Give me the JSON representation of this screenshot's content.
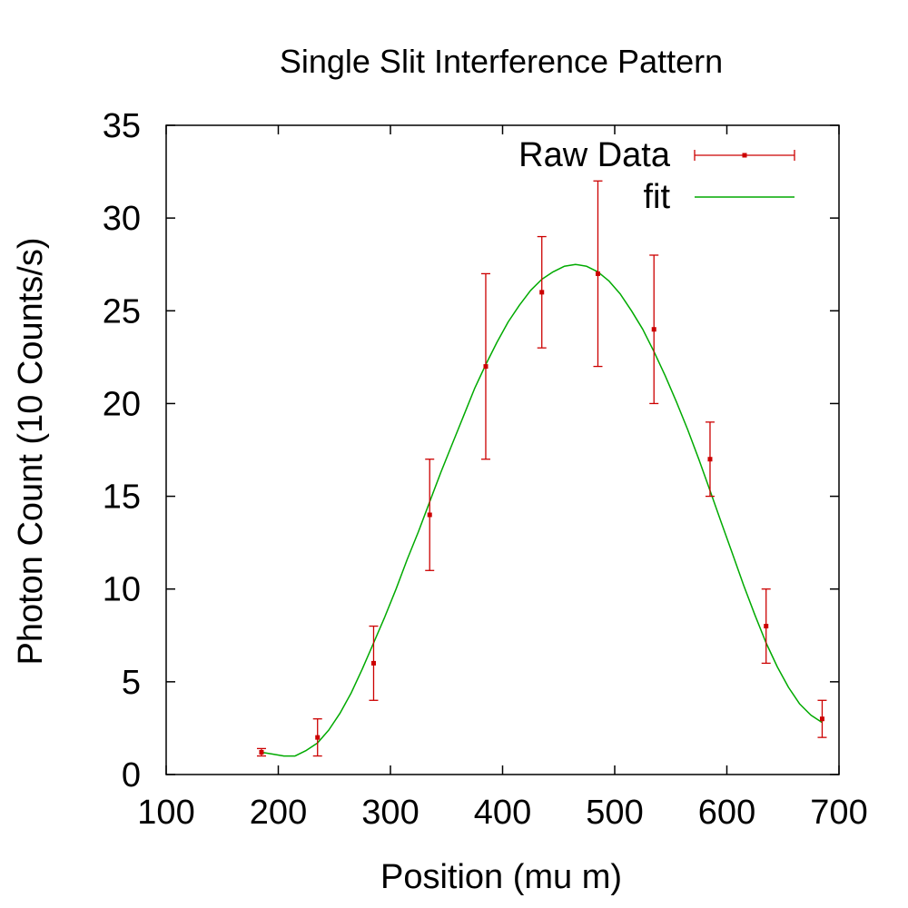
{
  "chart_data": {
    "type": "scatter",
    "title": "Single Slit Interference Pattern",
    "xlabel": "Position (mu m)",
    "ylabel": "Photon Count (10 Counts/s)",
    "xlim": [
      100,
      700
    ],
    "ylim": [
      0,
      35
    ],
    "xticks": [
      100,
      200,
      300,
      400,
      500,
      600,
      700
    ],
    "yticks": [
      0,
      5,
      10,
      15,
      20,
      25,
      30,
      35
    ],
    "grid": false,
    "legend_position": "top-right",
    "series": [
      {
        "name": "Raw Data",
        "kind": "points-with-error-bars",
        "color": "#cc0000",
        "x": [
          185,
          235,
          285,
          335,
          385,
          435,
          485,
          535,
          585,
          635,
          685
        ],
        "y": [
          1.2,
          2,
          6,
          14,
          22,
          26,
          27,
          24,
          17,
          8,
          3
        ],
        "yerr": [
          0.2,
          1,
          2,
          3,
          5,
          3,
          5,
          4,
          2,
          2,
          1
        ]
      },
      {
        "name": "fit",
        "kind": "line",
        "color": "#00aa00",
        "x": [
          185,
          195,
          205,
          215,
          225,
          235,
          245,
          255,
          265,
          275,
          285,
          295,
          305,
          315,
          325,
          335,
          345,
          355,
          365,
          375,
          385,
          395,
          405,
          415,
          425,
          435,
          445,
          455,
          465,
          475,
          485,
          495,
          505,
          515,
          525,
          535,
          545,
          555,
          565,
          575,
          585,
          595,
          605,
          615,
          625,
          635,
          645,
          655,
          665,
          675,
          685
        ],
        "y": [
          1.2,
          1.1,
          1.0,
          1.0,
          1.3,
          1.7,
          2.4,
          3.3,
          4.4,
          5.7,
          7.1,
          8.5,
          10.0,
          11.6,
          13.1,
          14.7,
          16.3,
          17.8,
          19.3,
          20.8,
          22.1,
          23.3,
          24.4,
          25.3,
          26.1,
          26.7,
          27.1,
          27.4,
          27.5,
          27.4,
          27.1,
          26.6,
          25.9,
          25.0,
          24.0,
          22.8,
          21.5,
          20.1,
          18.6,
          17.0,
          15.3,
          13.6,
          11.9,
          10.2,
          8.6,
          7.1,
          5.8,
          4.7,
          3.8,
          3.2,
          2.8
        ]
      }
    ]
  }
}
